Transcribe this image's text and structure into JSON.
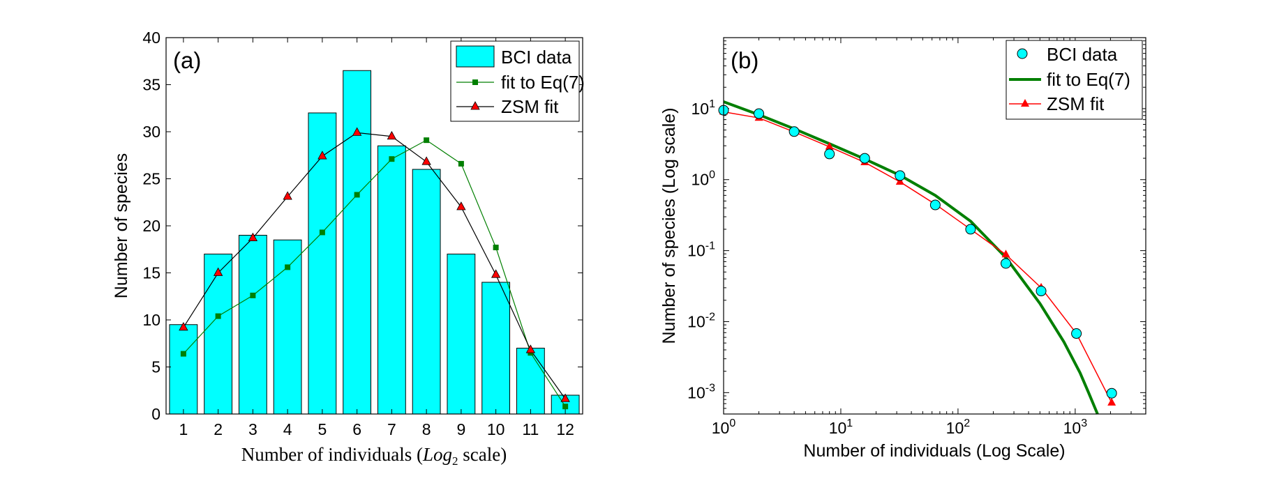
{
  "chart_data": [
    {
      "panel": "(a)",
      "type": "bar",
      "xlabel_prefix": "Number of individuals (",
      "xlabel_math": "Log",
      "xlabel_sub": "2",
      "xlabel_suffix": " scale)",
      "ylabel": "Number of species",
      "categories": [
        1,
        2,
        3,
        4,
        5,
        6,
        7,
        8,
        9,
        10,
        11,
        12
      ],
      "ylim": [
        0,
        40
      ],
      "yticks": [
        0,
        5,
        10,
        15,
        20,
        25,
        30,
        35,
        40
      ],
      "legend_position": "top-right",
      "series": [
        {
          "name": "BCI data",
          "kind": "bar",
          "color": "#00ffff",
          "values": [
            9.5,
            17,
            19,
            18.5,
            32,
            36.5,
            28.5,
            26,
            17,
            14,
            7,
            2
          ]
        },
        {
          "name": "fit to Eq(7)",
          "kind": "line-square",
          "color": "#007f00",
          "values": [
            6.4,
            10.4,
            12.6,
            15.6,
            19.3,
            23.3,
            27.1,
            29.1,
            26.6,
            17.7,
            6.5,
            0.8
          ]
        },
        {
          "name": "ZSM fit",
          "kind": "line-triangle",
          "color": "#000000",
          "marker_color": "#ff0000",
          "values": [
            9.2,
            15.0,
            18.7,
            23.1,
            27.4,
            29.9,
            29.5,
            26.8,
            22.0,
            14.8,
            6.8,
            1.6
          ]
        }
      ]
    },
    {
      "panel": "(b)",
      "type": "scatter",
      "xscale": "log",
      "yscale": "log",
      "xlabel": "Number of individuals (Log Scale)",
      "ylabel": "Number of species (Log scale)",
      "xlim": [
        1,
        4000
      ],
      "ylim": [
        0.0005,
        100
      ],
      "xticks": [
        {
          "base": "10",
          "exp": "0",
          "value": 1
        },
        {
          "base": "10",
          "exp": "1",
          "value": 10
        },
        {
          "base": "10",
          "exp": "2",
          "value": 100
        },
        {
          "base": "10",
          "exp": "3",
          "value": 1000
        }
      ],
      "yticks": [
        {
          "base": "10",
          "exp": "-3",
          "value": 0.001
        },
        {
          "base": "10",
          "exp": "-2",
          "value": 0.01
        },
        {
          "base": "10",
          "exp": "-1",
          "value": 0.1
        },
        {
          "base": "10",
          "exp": "0",
          "value": 1
        },
        {
          "base": "10",
          "exp": "1",
          "value": 10
        }
      ],
      "legend_position": "top-right",
      "series": [
        {
          "name": "BCI data",
          "kind": "scatter-circle",
          "color": "#00ffff",
          "x": [
            1,
            2,
            4,
            8,
            16,
            32,
            64,
            128,
            256,
            512,
            1024,
            2048
          ],
          "y": [
            9.5,
            8.5,
            4.75,
            2.3,
            2.0,
            1.14,
            0.44,
            0.2,
            0.066,
            0.027,
            0.0068,
            0.00098
          ]
        },
        {
          "name": "fit to Eq(7)",
          "kind": "curve",
          "color": "#007f00",
          "x": [
            1,
            2,
            4,
            8,
            16,
            32,
            64,
            128,
            256,
            500,
            800,
            1100,
            1300,
            1450,
            1550
          ],
          "y": [
            12.5,
            8.2,
            5.2,
            3.2,
            1.95,
            1.15,
            0.6,
            0.26,
            0.08,
            0.018,
            0.0052,
            0.0019,
            0.001,
            0.00065,
            0.0005
          ]
        },
        {
          "name": "ZSM fit",
          "kind": "line-triangle",
          "color": "#ff0000",
          "x": [
            1,
            2,
            4,
            8,
            16,
            32,
            64,
            128,
            256,
            512,
            1024,
            2048
          ],
          "y": [
            9.0,
            7.4,
            4.7,
            2.9,
            1.75,
            0.93,
            0.45,
            0.2,
            0.088,
            0.03,
            0.0068,
            0.00072
          ]
        }
      ]
    }
  ]
}
